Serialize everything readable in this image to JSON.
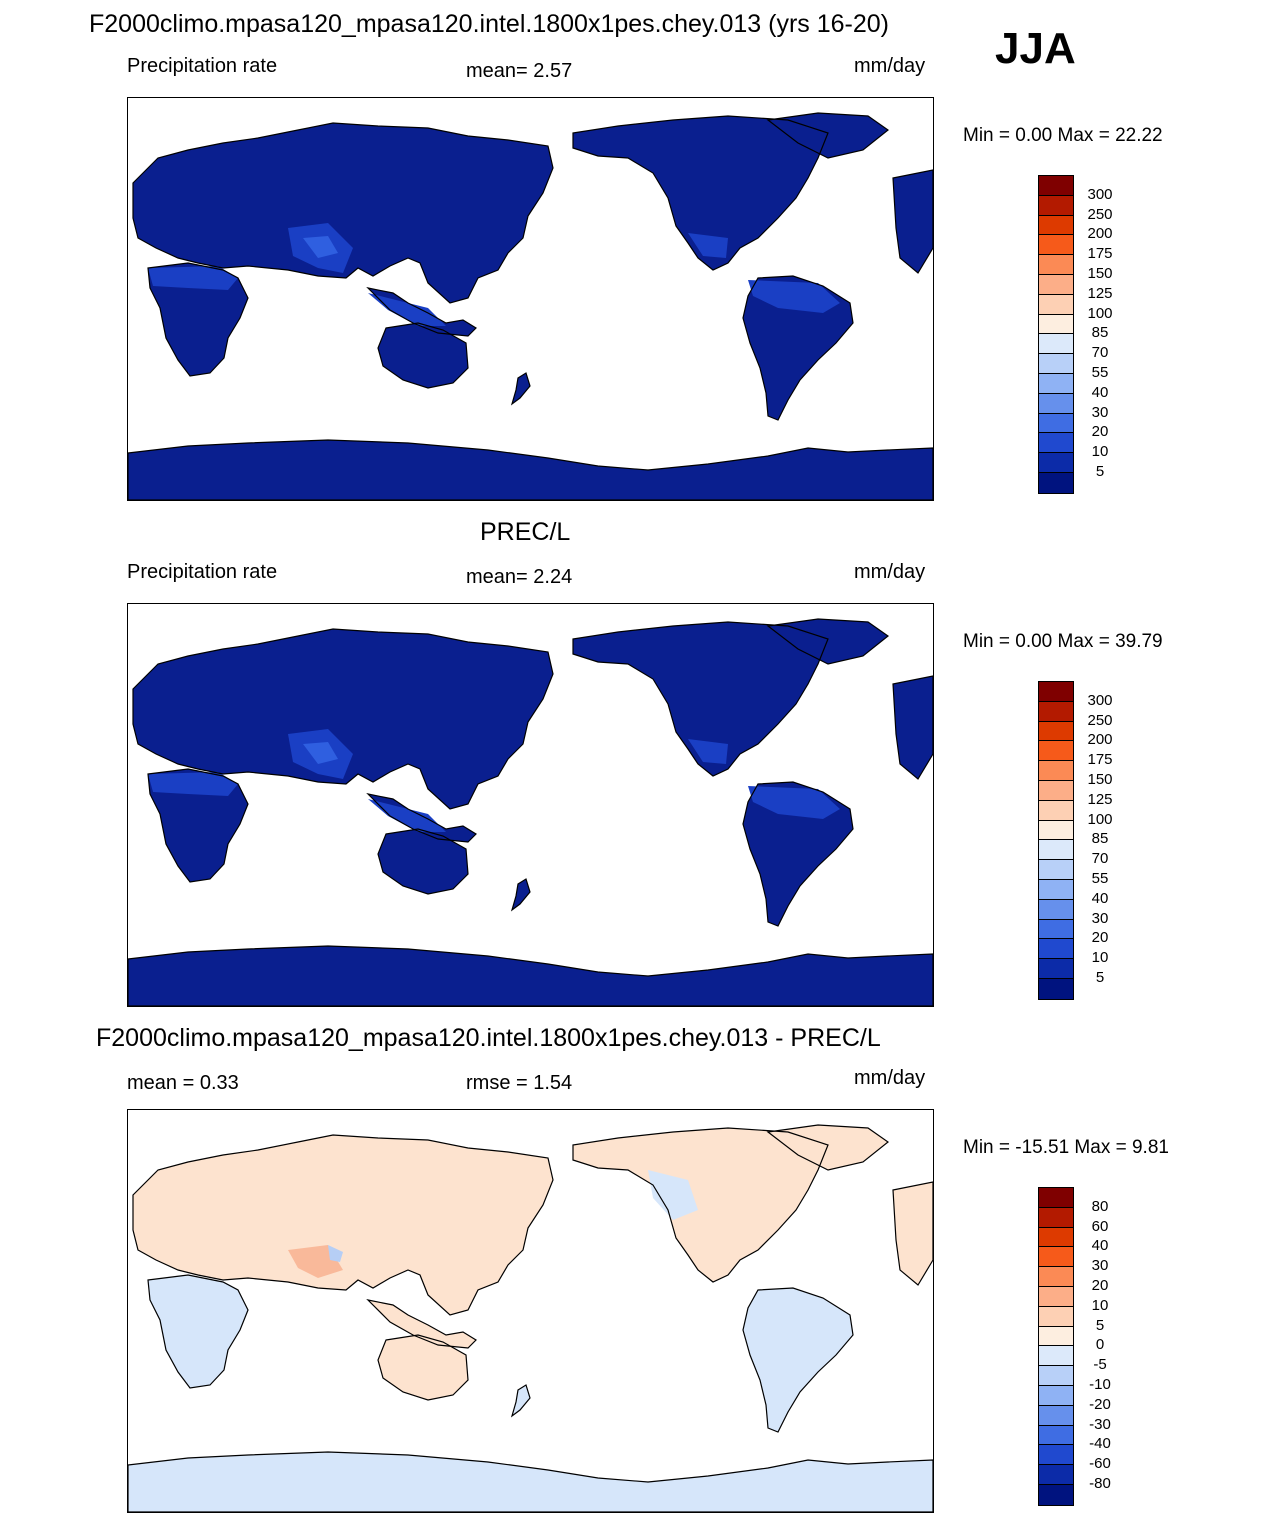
{
  "main_title": "F2000climo.mpasa120_mpasa120.intel.1800x1pes.chey.013 (yrs 16-20)",
  "season": "JJA",
  "colors": {
    "ocean": "#ffffff",
    "prec_land": "#0a1f8f",
    "prec_band": "#1a3fc4",
    "prec_band2": "#2f5fe0",
    "diff_pos": "#fde3cf",
    "diff_neg": "#d6e6fa",
    "diff_pos2": "#f9b99a",
    "diff_neg2": "#b6cef5"
  },
  "panels": [
    {
      "title": "",
      "left_label": "Precipitation rate",
      "center_label": "mean=   2.57",
      "right_label": "mm/day",
      "minmax": "Min =    0.00 Max =   22.22",
      "kind": "model",
      "colorbar": {
        "colors": [
          "#7f0000",
          "#b31a00",
          "#dd3a00",
          "#f65a1a",
          "#fb8a55",
          "#fcae88",
          "#fdd0b4",
          "#fdeee0",
          "#dce9fa",
          "#b8d0f8",
          "#8fb2f4",
          "#6690ec",
          "#3f6de3",
          "#2049cf",
          "#0c2ba8",
          "#00137f"
        ],
        "labels": [
          "300",
          "250",
          "200",
          "175",
          "150",
          "125",
          "100",
          "85",
          "70",
          "55",
          "40",
          "30",
          "20",
          "10",
          "5"
        ]
      }
    },
    {
      "title": "PREC/L",
      "left_label": "Precipitation rate",
      "center_label": "mean=   2.24",
      "right_label": "mm/day",
      "minmax": "Min =    0.00 Max =   39.79",
      "kind": "obs",
      "colorbar": {
        "colors": [
          "#7f0000",
          "#b31a00",
          "#dd3a00",
          "#f65a1a",
          "#fb8a55",
          "#fcae88",
          "#fdd0b4",
          "#fdeee0",
          "#dce9fa",
          "#b8d0f8",
          "#8fb2f4",
          "#6690ec",
          "#3f6de3",
          "#2049cf",
          "#0c2ba8",
          "#00137f"
        ],
        "labels": [
          "300",
          "250",
          "200",
          "175",
          "150",
          "125",
          "100",
          "85",
          "70",
          "55",
          "40",
          "30",
          "20",
          "10",
          "5"
        ]
      }
    },
    {
      "title": "F2000climo.mpasa120_mpasa120.intel.1800x1pes.chey.013 - PREC/L",
      "left_label": "mean =   0.33",
      "center_label": "rmse =   1.54",
      "right_label": "mm/day",
      "minmax": "Min = -15.51 Max =    9.81",
      "kind": "diff",
      "colorbar": {
        "colors": [
          "#7f0000",
          "#b31a00",
          "#dd3a00",
          "#f65a1a",
          "#fb8a55",
          "#fcae88",
          "#fdd0b4",
          "#fdeee0",
          "#dce9fa",
          "#b8d0f8",
          "#8fb2f4",
          "#6690ec",
          "#3f6de3",
          "#2049cf",
          "#0c2ba8",
          "#00137f"
        ],
        "labels": [
          "80",
          "60",
          "40",
          "30",
          "20",
          "10",
          "5",
          "0",
          "-5",
          "-10",
          "-20",
          "-30",
          "-40",
          "-60",
          "-80"
        ]
      }
    }
  ]
}
